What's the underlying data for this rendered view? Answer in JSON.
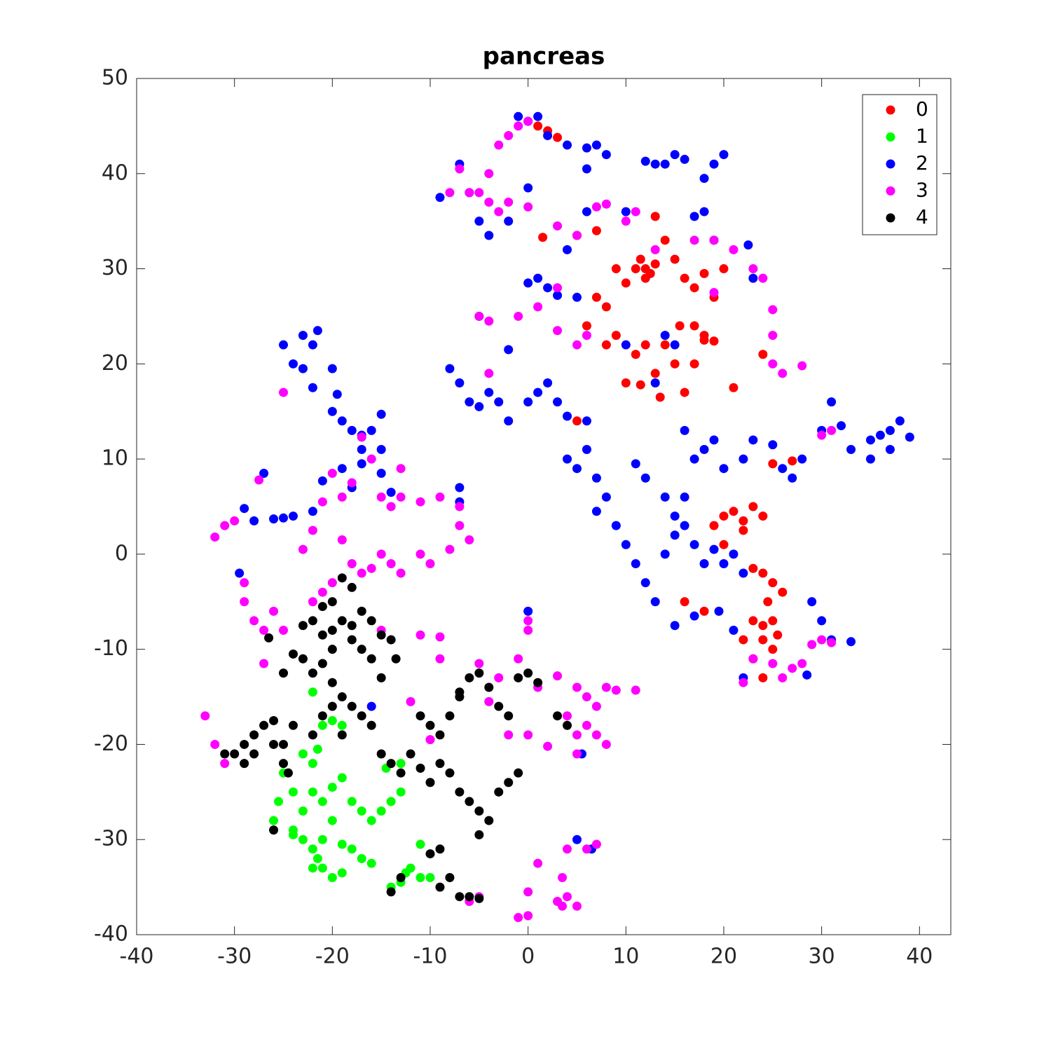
{
  "chart_data": {
    "type": "scatter",
    "title": "pancreas",
    "xlim": [
      -40,
      43.2
    ],
    "ylim": [
      -40,
      50
    ],
    "xticks": [
      -40,
      -30,
      -20,
      -10,
      0,
      10,
      20,
      30,
      40
    ],
    "yticks": [
      -40,
      -30,
      -20,
      -10,
      0,
      10,
      20,
      30,
      40,
      50
    ],
    "legend": "upper right",
    "series": [
      {
        "name": "0",
        "color": "#ff0000",
        "x": [
          1,
          2,
          3,
          1.5,
          5,
          7,
          11,
          12,
          12.5,
          13,
          11.5,
          12,
          10,
          9,
          13,
          14,
          15,
          16,
          17,
          18,
          19,
          20,
          7,
          8,
          6,
          9,
          8,
          11,
          12,
          13,
          14,
          15,
          16,
          17,
          18,
          19,
          10,
          11.5,
          13.5,
          15.5,
          17,
          18,
          21,
          24,
          25,
          27,
          20,
          21,
          22,
          23,
          24,
          19,
          22,
          20,
          23,
          24,
          25,
          26,
          24.5,
          23,
          24,
          25,
          25.5,
          24,
          22,
          23,
          25,
          24,
          16,
          18,
          5
        ],
        "values": [
          45,
          44.5,
          43.8,
          33.3,
          33.5,
          34,
          30,
          30,
          29.5,
          30.5,
          31,
          29,
          28.5,
          30,
          35.5,
          33,
          31,
          29,
          28,
          29.5,
          27,
          30,
          27,
          26,
          24,
          23,
          22,
          21,
          22,
          19,
          22,
          20,
          17,
          20,
          22.5,
          22.4,
          18,
          17.8,
          16.5,
          24,
          24,
          23,
          17.5,
          21,
          9.5,
          9.8,
          4,
          4.5,
          3.5,
          5,
          4,
          3,
          2.5,
          1,
          -1.5,
          -2,
          -3,
          -4,
          -5,
          -7,
          -7.5,
          -7,
          -8.5,
          -9,
          -9,
          -11,
          -10,
          -13,
          -5,
          -6,
          14
        ]
      },
      {
        "name": "1",
        "color": "#00ff00",
        "x": [
          -22,
          -21,
          -20,
          -19,
          -21.5,
          -23,
          -22,
          -25,
          -24,
          -25.5,
          -26,
          -24,
          -23,
          -22,
          -21,
          -20,
          -19,
          -18,
          -17,
          -16,
          -15,
          -14,
          -13,
          -13,
          -14.5,
          -20,
          -21,
          -22,
          -21.5,
          -21,
          -20,
          -22,
          -23,
          -24,
          -19,
          -18,
          -17,
          -16,
          -19,
          -11,
          -12,
          -11,
          -10,
          -13,
          -12.5,
          -14
        ],
        "values": [
          -14.5,
          -18,
          -17.5,
          -18,
          -20.5,
          -21,
          -22,
          -23,
          -25,
          -26,
          -28,
          -29,
          -27,
          -25,
          -26,
          -24.5,
          -23.5,
          -26,
          -27,
          -28,
          -27,
          -26,
          -25,
          -22,
          -22.5,
          -28,
          -30,
          -31,
          -32,
          -33,
          -34,
          -33,
          -30,
          -29.5,
          -33.5,
          -31,
          -32,
          -32.5,
          -30.5,
          -30.5,
          -33,
          -34,
          -34,
          -34.5,
          -33.5,
          -35
        ]
      },
      {
        "name": "2",
        "color": "#0000ff",
        "x": [
          -1,
          0,
          1,
          2,
          4,
          6,
          7,
          8,
          6,
          -9,
          -7,
          -6,
          -5,
          -4,
          -2,
          0,
          4,
          6,
          10,
          12,
          13,
          14,
          15,
          16,
          18,
          19,
          20,
          18,
          17,
          19,
          22.5,
          23,
          3,
          5,
          0,
          1,
          2,
          10,
          13,
          14,
          15,
          -2,
          -5,
          -8,
          -7,
          -6,
          -5,
          -4,
          -3,
          -2,
          0,
          1,
          2,
          3,
          4,
          6,
          6,
          4,
          5,
          7,
          8,
          7,
          9,
          10,
          11,
          12,
          13,
          14,
          15,
          16,
          17,
          18,
          19,
          20,
          21,
          22,
          11,
          12,
          14,
          15,
          16,
          17,
          18,
          19,
          16,
          20,
          22,
          23,
          25,
          26,
          27,
          28,
          30,
          31,
          32,
          33,
          35,
          36,
          37,
          38,
          39,
          37,
          35,
          29,
          30,
          31,
          33,
          28.5,
          22,
          19.5,
          17,
          15,
          21,
          -25,
          -23,
          -22,
          -21.5,
          -24,
          -23,
          -22,
          -20,
          -19.5,
          -20,
          -19,
          -18,
          -17,
          -16,
          -15,
          -15,
          -17,
          -19,
          -17,
          -18,
          -15,
          -14,
          -21,
          -27,
          -29,
          -28,
          -26,
          -25,
          -24,
          -22,
          -7,
          -7,
          -29.5,
          0,
          5,
          6.5,
          5.5,
          -16
        ],
        "values": [
          46,
          45.5,
          46,
          44,
          43,
          42.7,
          43,
          42,
          40.5,
          37.5,
          41,
          38,
          35,
          33.5,
          35,
          38.5,
          32,
          36,
          36,
          41.3,
          41,
          41,
          42,
          41.5,
          39.5,
          41,
          42,
          36,
          35.5,
          33,
          32.5,
          29,
          27.2,
          27,
          28.5,
          29,
          28,
          22,
          18,
          23,
          22,
          21.5,
          25,
          19.5,
          18,
          16,
          15.5,
          17,
          16,
          14,
          16,
          17,
          18,
          16,
          14.5,
          14,
          11,
          10,
          9,
          8,
          6,
          4.5,
          3,
          1,
          -1,
          -3,
          -5,
          0,
          2,
          3,
          1,
          -1,
          0.5,
          -1,
          0,
          -2,
          9.5,
          8,
          6,
          4,
          6,
          10,
          11,
          12,
          13,
          9,
          10,
          12,
          11.5,
          9,
          8,
          10,
          13,
          16,
          13.5,
          11,
          12,
          12.5,
          13,
          14,
          12.3,
          11,
          10,
          -5,
          -7,
          -9,
          -9.2,
          -12.7,
          -13,
          -6,
          -6.5,
          -7.5,
          -8,
          22,
          23,
          22,
          23.5,
          20,
          19.5,
          17.5,
          19.5,
          16.8,
          15,
          14,
          13,
          12.5,
          13,
          14.7,
          11,
          11,
          9,
          9.5,
          7,
          8.5,
          6.5,
          7.7,
          8.5,
          4.8,
          3.5,
          3.7,
          3.8,
          4,
          4.5,
          7,
          5.5,
          -2,
          -6,
          -30,
          -31,
          -21,
          -16
        ]
      },
      {
        "name": "3",
        "color": "#ff00ff",
        "x": [
          -2,
          -3,
          -1,
          0,
          -4,
          -5,
          -3,
          -6,
          -7,
          -8,
          -4,
          -2,
          0,
          3,
          5,
          7,
          8,
          10,
          11,
          13,
          19,
          21,
          23,
          24,
          1,
          3,
          -1,
          -4,
          -5,
          -4,
          3,
          5,
          6,
          25,
          25,
          25,
          26,
          28,
          30,
          31,
          -25,
          -17,
          -16,
          -13,
          -20,
          -19,
          -21,
          -18,
          -15,
          -14,
          -13,
          -11,
          -9,
          -7,
          -7,
          -6,
          -8,
          -10,
          -11,
          -13,
          -14,
          -15,
          -16,
          -17,
          -18,
          -19,
          -20,
          -21,
          -22,
          -23,
          -22,
          -32,
          -31,
          -30,
          -29,
          -29,
          -28,
          -27,
          -26,
          -27,
          -25,
          -27.5,
          -33,
          -32,
          -31,
          -15,
          -11,
          -9,
          -9,
          -5,
          -3,
          -1,
          0,
          0,
          1,
          -4,
          3,
          5,
          6,
          7,
          8,
          9,
          11,
          6,
          7,
          8,
          5,
          4,
          2,
          0,
          5,
          -2,
          -10,
          -12,
          4,
          3.5,
          4,
          3.5,
          3,
          5,
          0,
          -1,
          0,
          1,
          -6,
          -5,
          6,
          7,
          22,
          23,
          25,
          26,
          27,
          28,
          29,
          30,
          31,
          17,
          19
        ],
        "values": [
          44,
          43,
          45,
          45.5,
          40,
          38,
          36,
          38,
          40.5,
          38,
          37,
          37,
          36.5,
          34.5,
          33.5,
          36.5,
          36.8,
          35,
          36,
          32,
          33,
          32,
          30,
          29,
          26,
          28,
          25,
          24.5,
          25,
          19,
          23.5,
          22,
          23,
          25.7,
          23,
          20,
          19,
          19.8,
          12.5,
          13,
          17,
          12.3,
          10,
          9,
          8.5,
          6,
          5.5,
          7.5,
          6,
          5,
          6,
          5.5,
          6,
          5,
          3,
          1.5,
          0.5,
          -1,
          0,
          -2,
          -1,
          0,
          -1.5,
          -2,
          -1,
          1.5,
          -3,
          -4,
          -5,
          0.5,
          2.5,
          1.8,
          3,
          3.5,
          -3,
          -5,
          -7,
          -8,
          -6,
          -11.5,
          -8,
          7.8,
          -17,
          -20,
          -22,
          -8,
          -8.5,
          -8.7,
          -11,
          -11.5,
          -13,
          -11,
          -8,
          -7,
          -14,
          -15.5,
          -12.8,
          -14,
          -15,
          -16,
          -14,
          -14.3,
          -14.3,
          -18,
          -19,
          -20,
          -19,
          -17,
          -20.2,
          -19,
          -21,
          -19,
          -19.5,
          -15.5,
          -31,
          -34,
          -36,
          -37,
          -36.5,
          -37,
          -38,
          -38.2,
          -35.5,
          -32.5,
          -36.5,
          -36,
          -31,
          -30.5,
          -13.5,
          -11,
          -11.5,
          -13,
          -12,
          -11.5,
          -9.5,
          -9,
          -9.3,
          33,
          27.5
        ]
      },
      {
        "name": "4",
        "color": "#000000",
        "x": [
          -19,
          -18,
          -20,
          -21,
          -22,
          -23,
          -21,
          -20,
          -19,
          -18,
          -17,
          -16,
          -15,
          -14,
          -13.5,
          -18,
          -17,
          -16,
          -20,
          -21,
          -22,
          -23,
          -24,
          -25,
          -26.5,
          -20,
          -19,
          -18,
          -17,
          -16,
          -15,
          -20,
          -21,
          -19,
          -22,
          -24,
          -25,
          -26,
          -27,
          -28,
          -29,
          -30,
          -31,
          -29,
          -28,
          -26,
          -25,
          -24.5,
          -26,
          -15,
          -14,
          -13,
          -12,
          -11,
          -10,
          -9,
          -8,
          -7,
          -6,
          -5,
          -4,
          -5,
          -3,
          -2,
          -1,
          -11,
          -10,
          -9,
          -8,
          -7,
          -6,
          -5,
          -4,
          -3,
          -2,
          -1,
          0,
          1,
          3,
          4,
          -7,
          -8,
          -9,
          -7,
          -6,
          -5,
          -10,
          -9,
          -13,
          -14
        ],
        "values": [
          -2.5,
          -3.5,
          -5,
          -5.5,
          -7,
          -7.5,
          -8.5,
          -8,
          -7,
          -7.5,
          -6,
          -7,
          -8.5,
          -9,
          -11,
          -9,
          -10,
          -11,
          -10,
          -11.5,
          -12.5,
          -11,
          -10.5,
          -12.5,
          -8.8,
          -13.5,
          -15,
          -16,
          -17,
          -18,
          -13,
          -16,
          -17,
          -19,
          -19,
          -18,
          -20,
          -17.5,
          -18,
          -19,
          -20,
          -21,
          -21,
          -22,
          -21,
          -20,
          -22,
          -23,
          -29,
          -21,
          -22,
          -23,
          -21,
          -22.5,
          -24,
          -22,
          -23,
          -25,
          -26,
          -27,
          -28,
          -29.5,
          -25,
          -24,
          -23,
          -17,
          -18,
          -19,
          -17,
          -15,
          -13,
          -12.5,
          -14,
          -16,
          -17,
          -13,
          -12.5,
          -13.5,
          -17,
          -18,
          -14.5,
          -34,
          -35,
          -36,
          -36,
          -36.2,
          -31.5,
          -31,
          -34,
          -35.5
        ]
      }
    ]
  }
}
